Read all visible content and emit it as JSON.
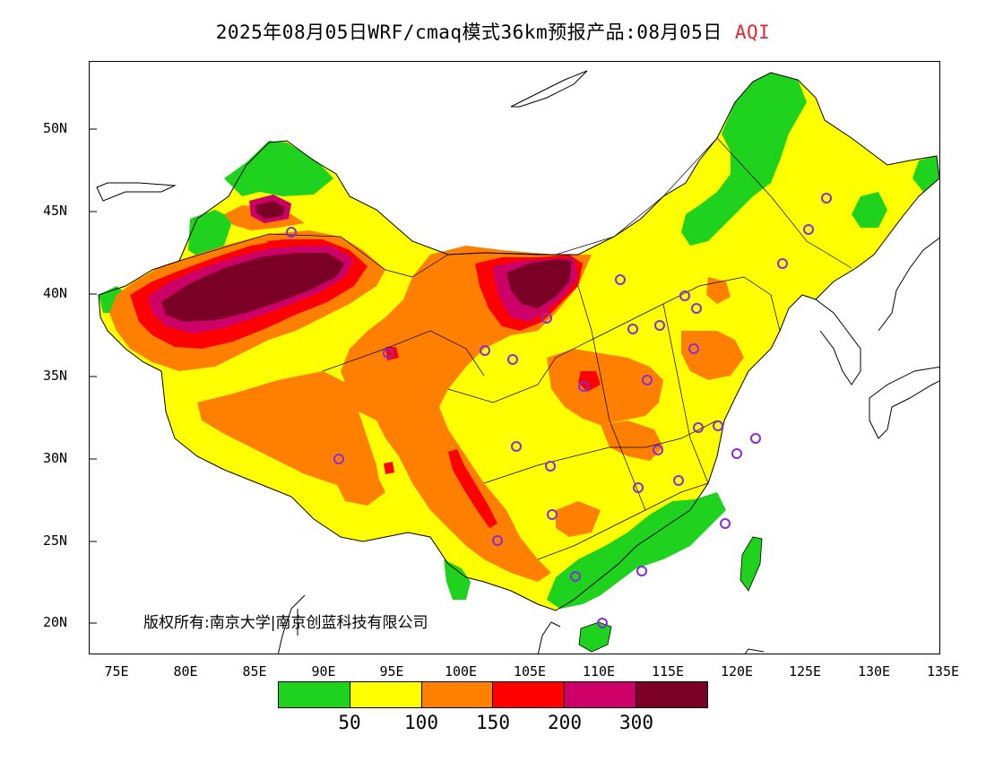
{
  "title": {
    "main": "2025年08月05日WRF/cmaq模式36km预报产品:08月05日",
    "variable": "AQI",
    "variable_color": "#e0282f"
  },
  "axes": {
    "lat_labels": [
      "50N",
      "45N",
      "40N",
      "35N",
      "30N",
      "25N",
      "20N"
    ],
    "lon_labels": [
      "75E",
      "80E",
      "85E",
      "90E",
      "95E",
      "100E",
      "105E",
      "110E",
      "115E",
      "120E",
      "125E",
      "130E",
      "135E"
    ]
  },
  "copyright": "版权所有:南京大学|南京创蓝科技有限公司",
  "legend": {
    "colors": [
      "#1ed21e",
      "#ffff00",
      "#ff8000",
      "#ff0000",
      "#cc0066",
      "#7a0026"
    ],
    "labels": [
      "50",
      "100",
      "150",
      "200",
      "300"
    ]
  },
  "colors": {
    "green": "#1ed21e",
    "yellow": "#ffff00",
    "orange": "#ff8000",
    "red": "#ff0000",
    "magenta": "#cc0066",
    "maroon": "#7a0026",
    "station_ring": "#8a2be2"
  }
}
